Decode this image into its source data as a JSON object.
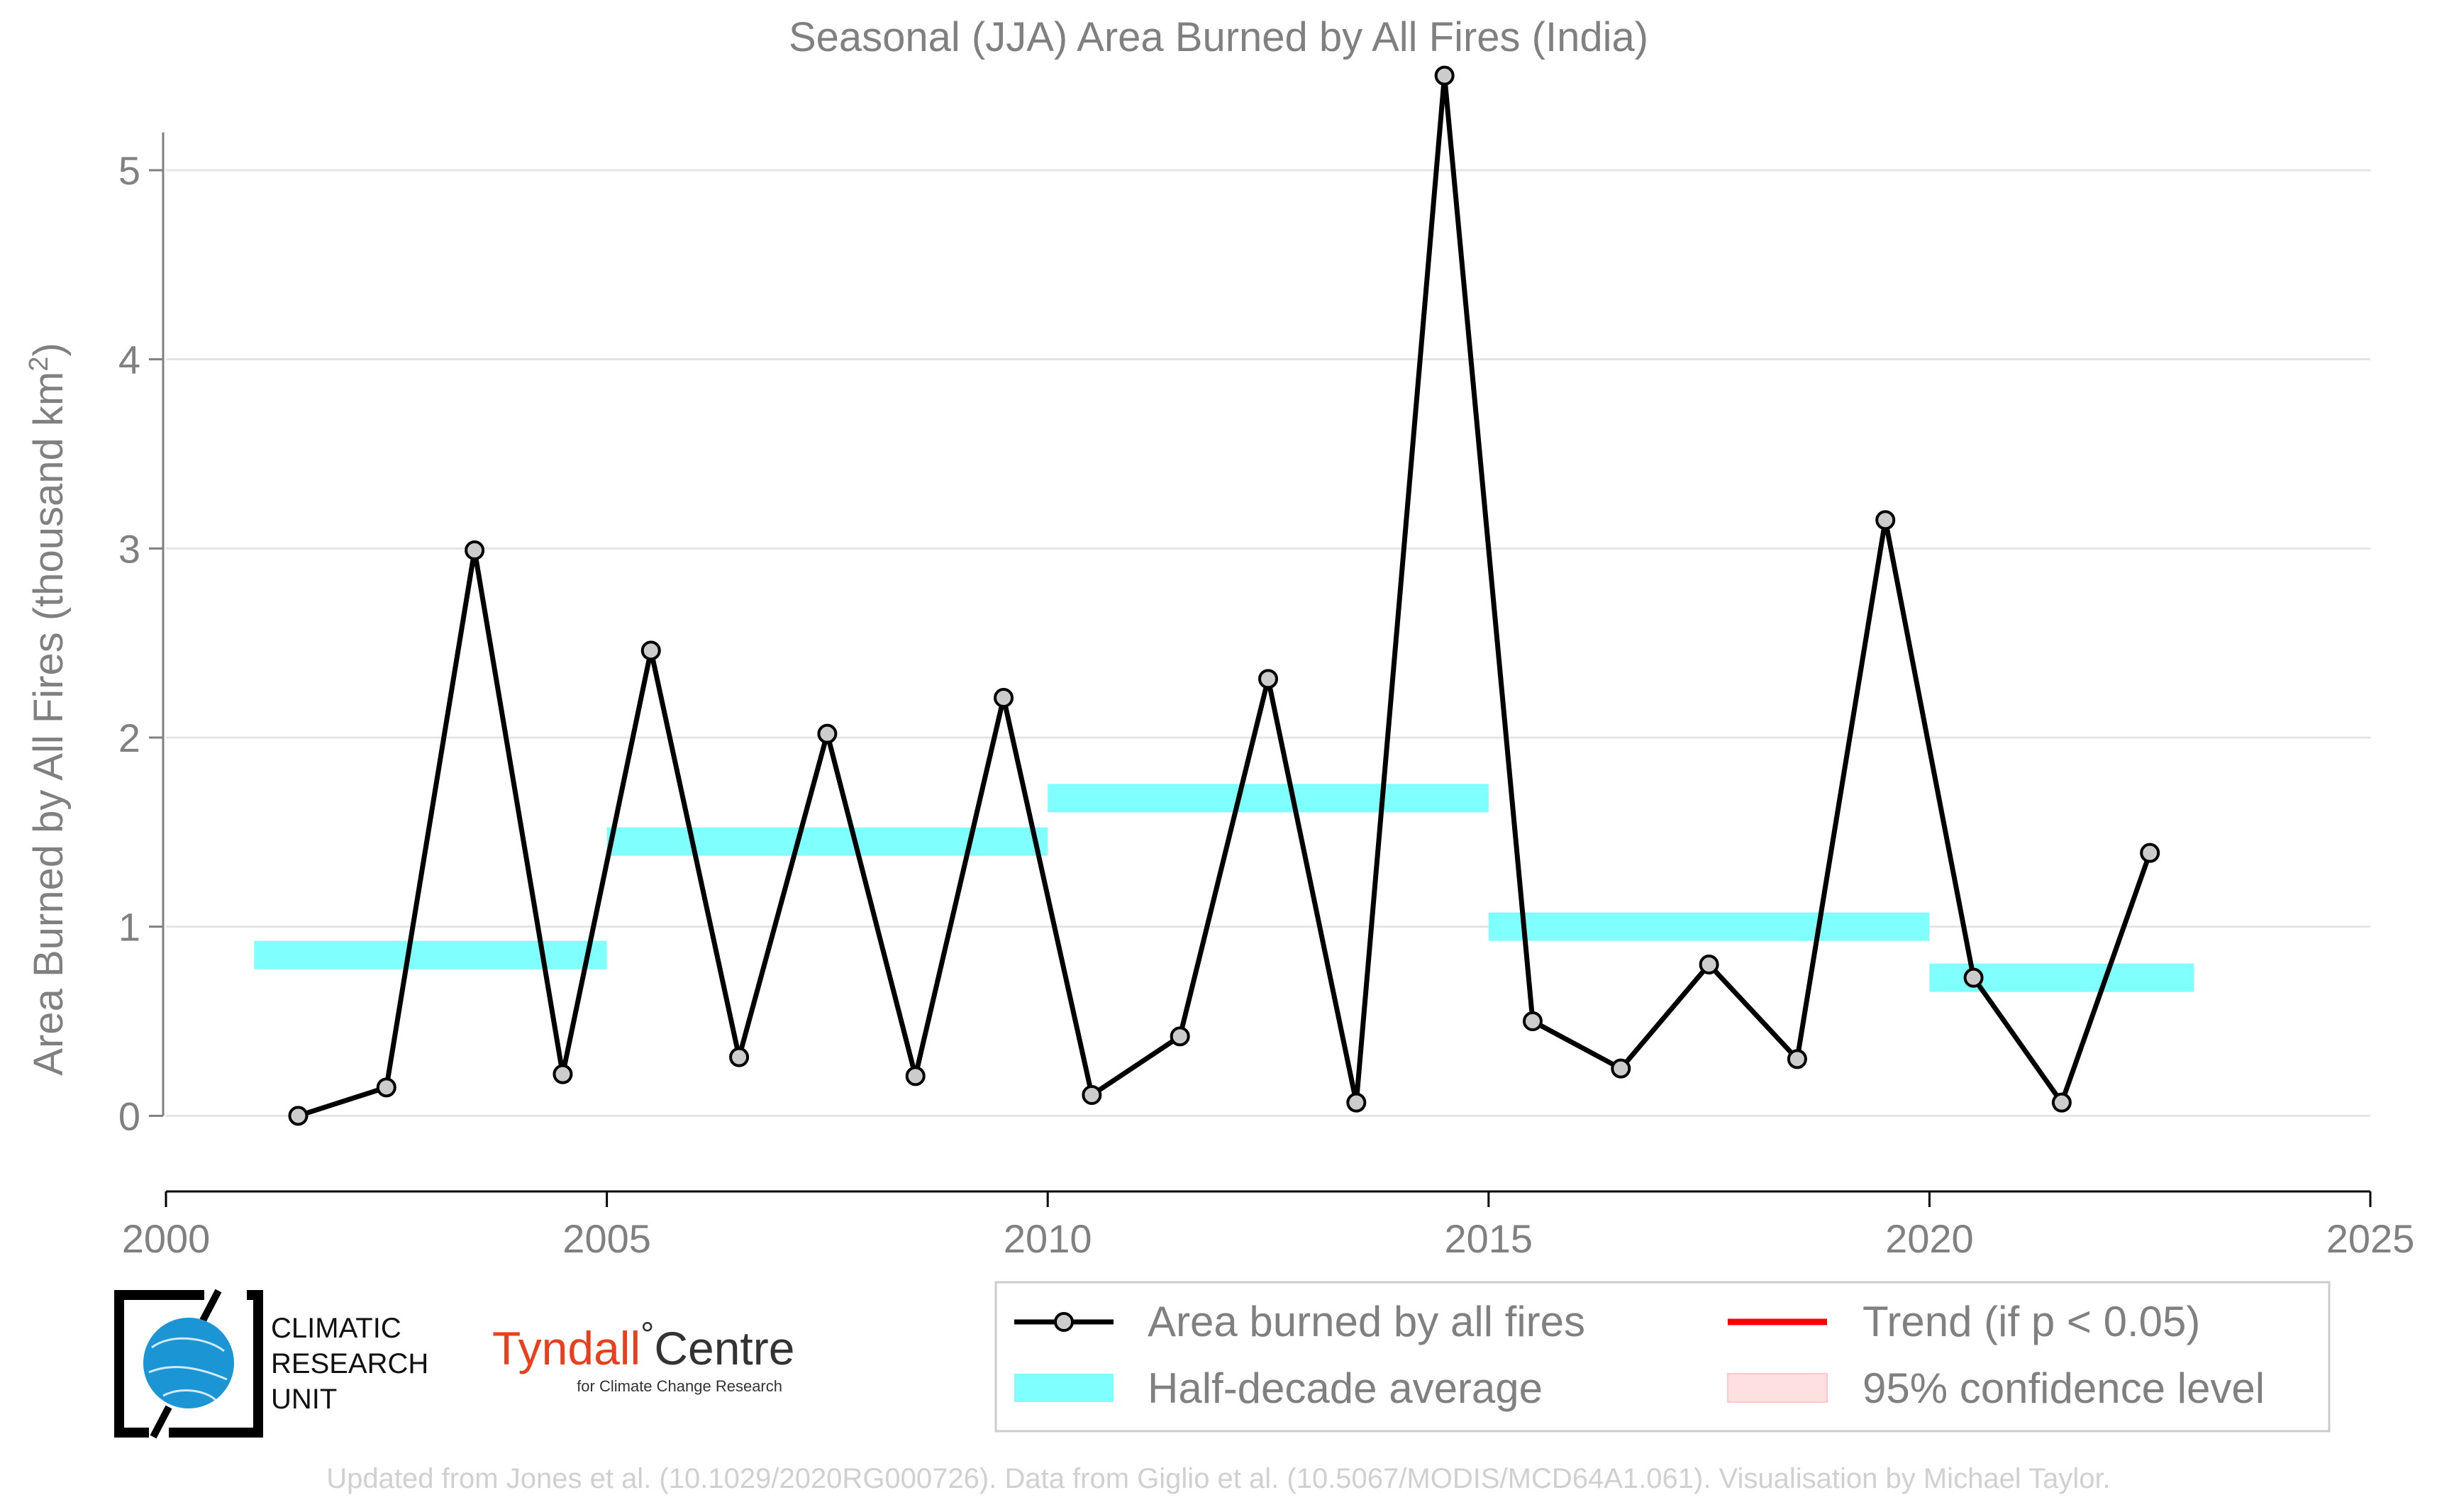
{
  "chart_data": {
    "type": "line",
    "title": "Seasonal (JJA) Area Burned by All Fires (India)",
    "ylabel": "Area Burned by All Fires (thousand km",
    "ylabel_sup": "2",
    "ylabel_close": ")",
    "xlim": [
      2000,
      2025
    ],
    "ylim": [
      -0.4,
      5.6
    ],
    "x_ticks": [
      "2000",
      "2005",
      "2010",
      "2015",
      "2020",
      "2025"
    ],
    "y_ticks": [
      "0",
      "1",
      "2",
      "3",
      "4",
      "5"
    ],
    "grid": "horizontal",
    "legend_position": "bottom-right",
    "series": [
      {
        "name": "Area burned by all fires",
        "color": "#000000",
        "marker_fill": "#cccccc",
        "x": [
          2001.5,
          2002.5,
          2003.5,
          2004.5,
          2005.5,
          2006.5,
          2007.5,
          2008.5,
          2009.5,
          2010.5,
          2011.5,
          2012.5,
          2013.5,
          2014.5,
          2015.5,
          2016.5,
          2017.5,
          2018.5,
          2019.5,
          2020.5,
          2021.5,
          2022.5
        ],
        "values": [
          0.0,
          0.15,
          2.99,
          0.22,
          2.46,
          0.31,
          2.02,
          0.21,
          2.21,
          0.11,
          0.42,
          2.31,
          0.07,
          5.5,
          0.5,
          0.25,
          0.8,
          0.3,
          3.15,
          0.73,
          0.07,
          1.39
        ]
      }
    ],
    "half_decade_average": {
      "name": "Half-decade average",
      "color": "#80ffff",
      "segments": [
        {
          "x0": 2001,
          "x1": 2005,
          "value": 0.85
        },
        {
          "x0": 2005,
          "x1": 2010,
          "value": 1.45
        },
        {
          "x0": 2010,
          "x1": 2015,
          "value": 1.68
        },
        {
          "x0": 2015,
          "x1": 2020,
          "value": 1.0
        },
        {
          "x0": 2020,
          "x1": 2023,
          "value": 0.73
        }
      ]
    },
    "trend": {
      "name": "Trend (if p < 0.05)",
      "color": "#ff0000"
    },
    "confidence": {
      "name": "95% confidence level",
      "color": "#ffe0e0"
    }
  },
  "logos": {
    "cru_lines": [
      "CLIMATIC",
      "RESEARCH",
      "UNIT"
    ],
    "tyndall_main": "Tyndall",
    "tyndall_degree": "°",
    "tyndall_centre": "Centre",
    "tyndall_sub": "for Climate Change Research"
  },
  "footer": {
    "credit": "Updated from Jones et al. (10.1029/2020RG000726). Data from Giglio et al. (10.5067/MODIS/MCD64A1.061). Visualisation by Michael Taylor."
  }
}
